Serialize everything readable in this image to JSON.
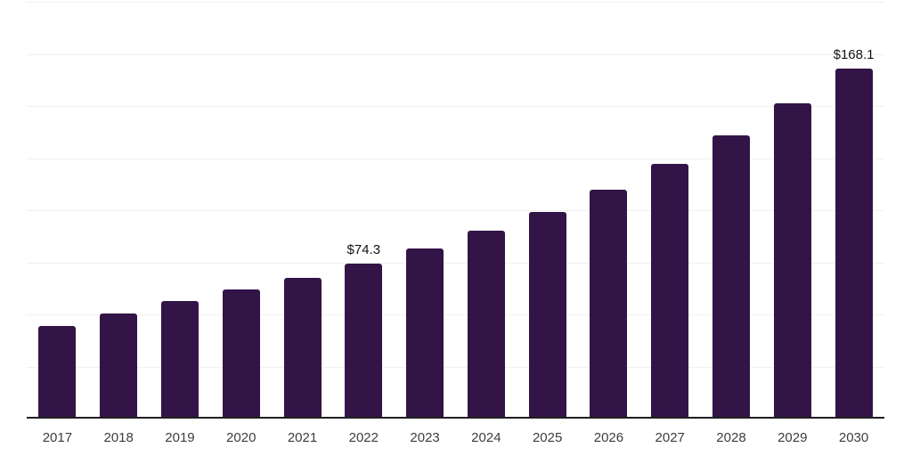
{
  "chart_data": {
    "type": "bar",
    "title": "",
    "xlabel": "",
    "ylabel": "",
    "categories": [
      "2017",
      "2018",
      "2019",
      "2020",
      "2021",
      "2022",
      "2023",
      "2024",
      "2025",
      "2026",
      "2027",
      "2028",
      "2029",
      "2030"
    ],
    "values": [
      44.4,
      50.3,
      56.3,
      61.9,
      67.5,
      74.3,
      81.7,
      90.0,
      99.2,
      110.0,
      122.4,
      136.0,
      151.4,
      168.1
    ],
    "data_labels": [
      "",
      "",
      "",
      "",
      "",
      "$74.3",
      "",
      "",
      "",
      "",
      "",
      "",
      "",
      "$168.1"
    ],
    "ylim": [
      0,
      200
    ],
    "gridline_step": 25,
    "grid": true,
    "legend_position": "none",
    "bar_color": "#331447",
    "gridline_color": "#f0f0f0",
    "axis_line_color": "#1f1f1f",
    "data_label_color": "#131313",
    "tick_label_color": "#3d3d3d",
    "background_color": "#ffffff"
  }
}
